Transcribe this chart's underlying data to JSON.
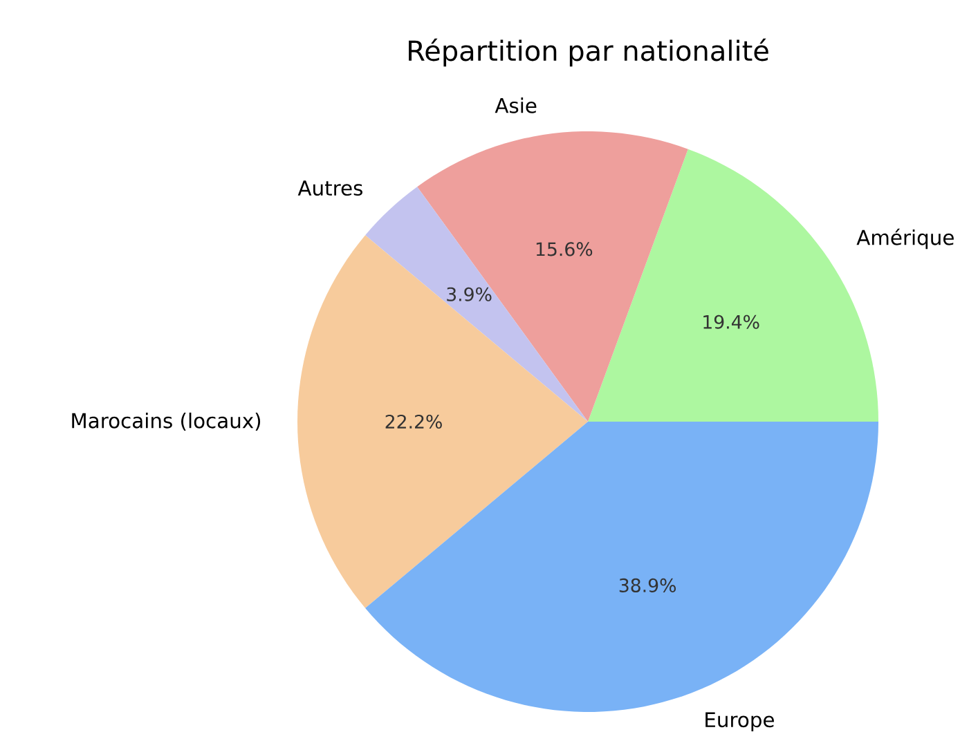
{
  "chart_data": {
    "type": "pie",
    "title": "Répartition par nationalité",
    "categories": [
      "Amérique",
      "Asie",
      "Autres",
      "Marocains (locaux)",
      "Europe"
    ],
    "values": [
      19.4,
      15.6,
      3.9,
      22.2,
      38.9
    ],
    "value_labels": [
      "19.4%",
      "15.6%",
      "3.9%",
      "22.2%",
      "38.9%"
    ],
    "colors": [
      "#adf7a0",
      "#ee9f9c",
      "#c3c3ef",
      "#f7cb9c",
      "#79b2f6"
    ]
  }
}
